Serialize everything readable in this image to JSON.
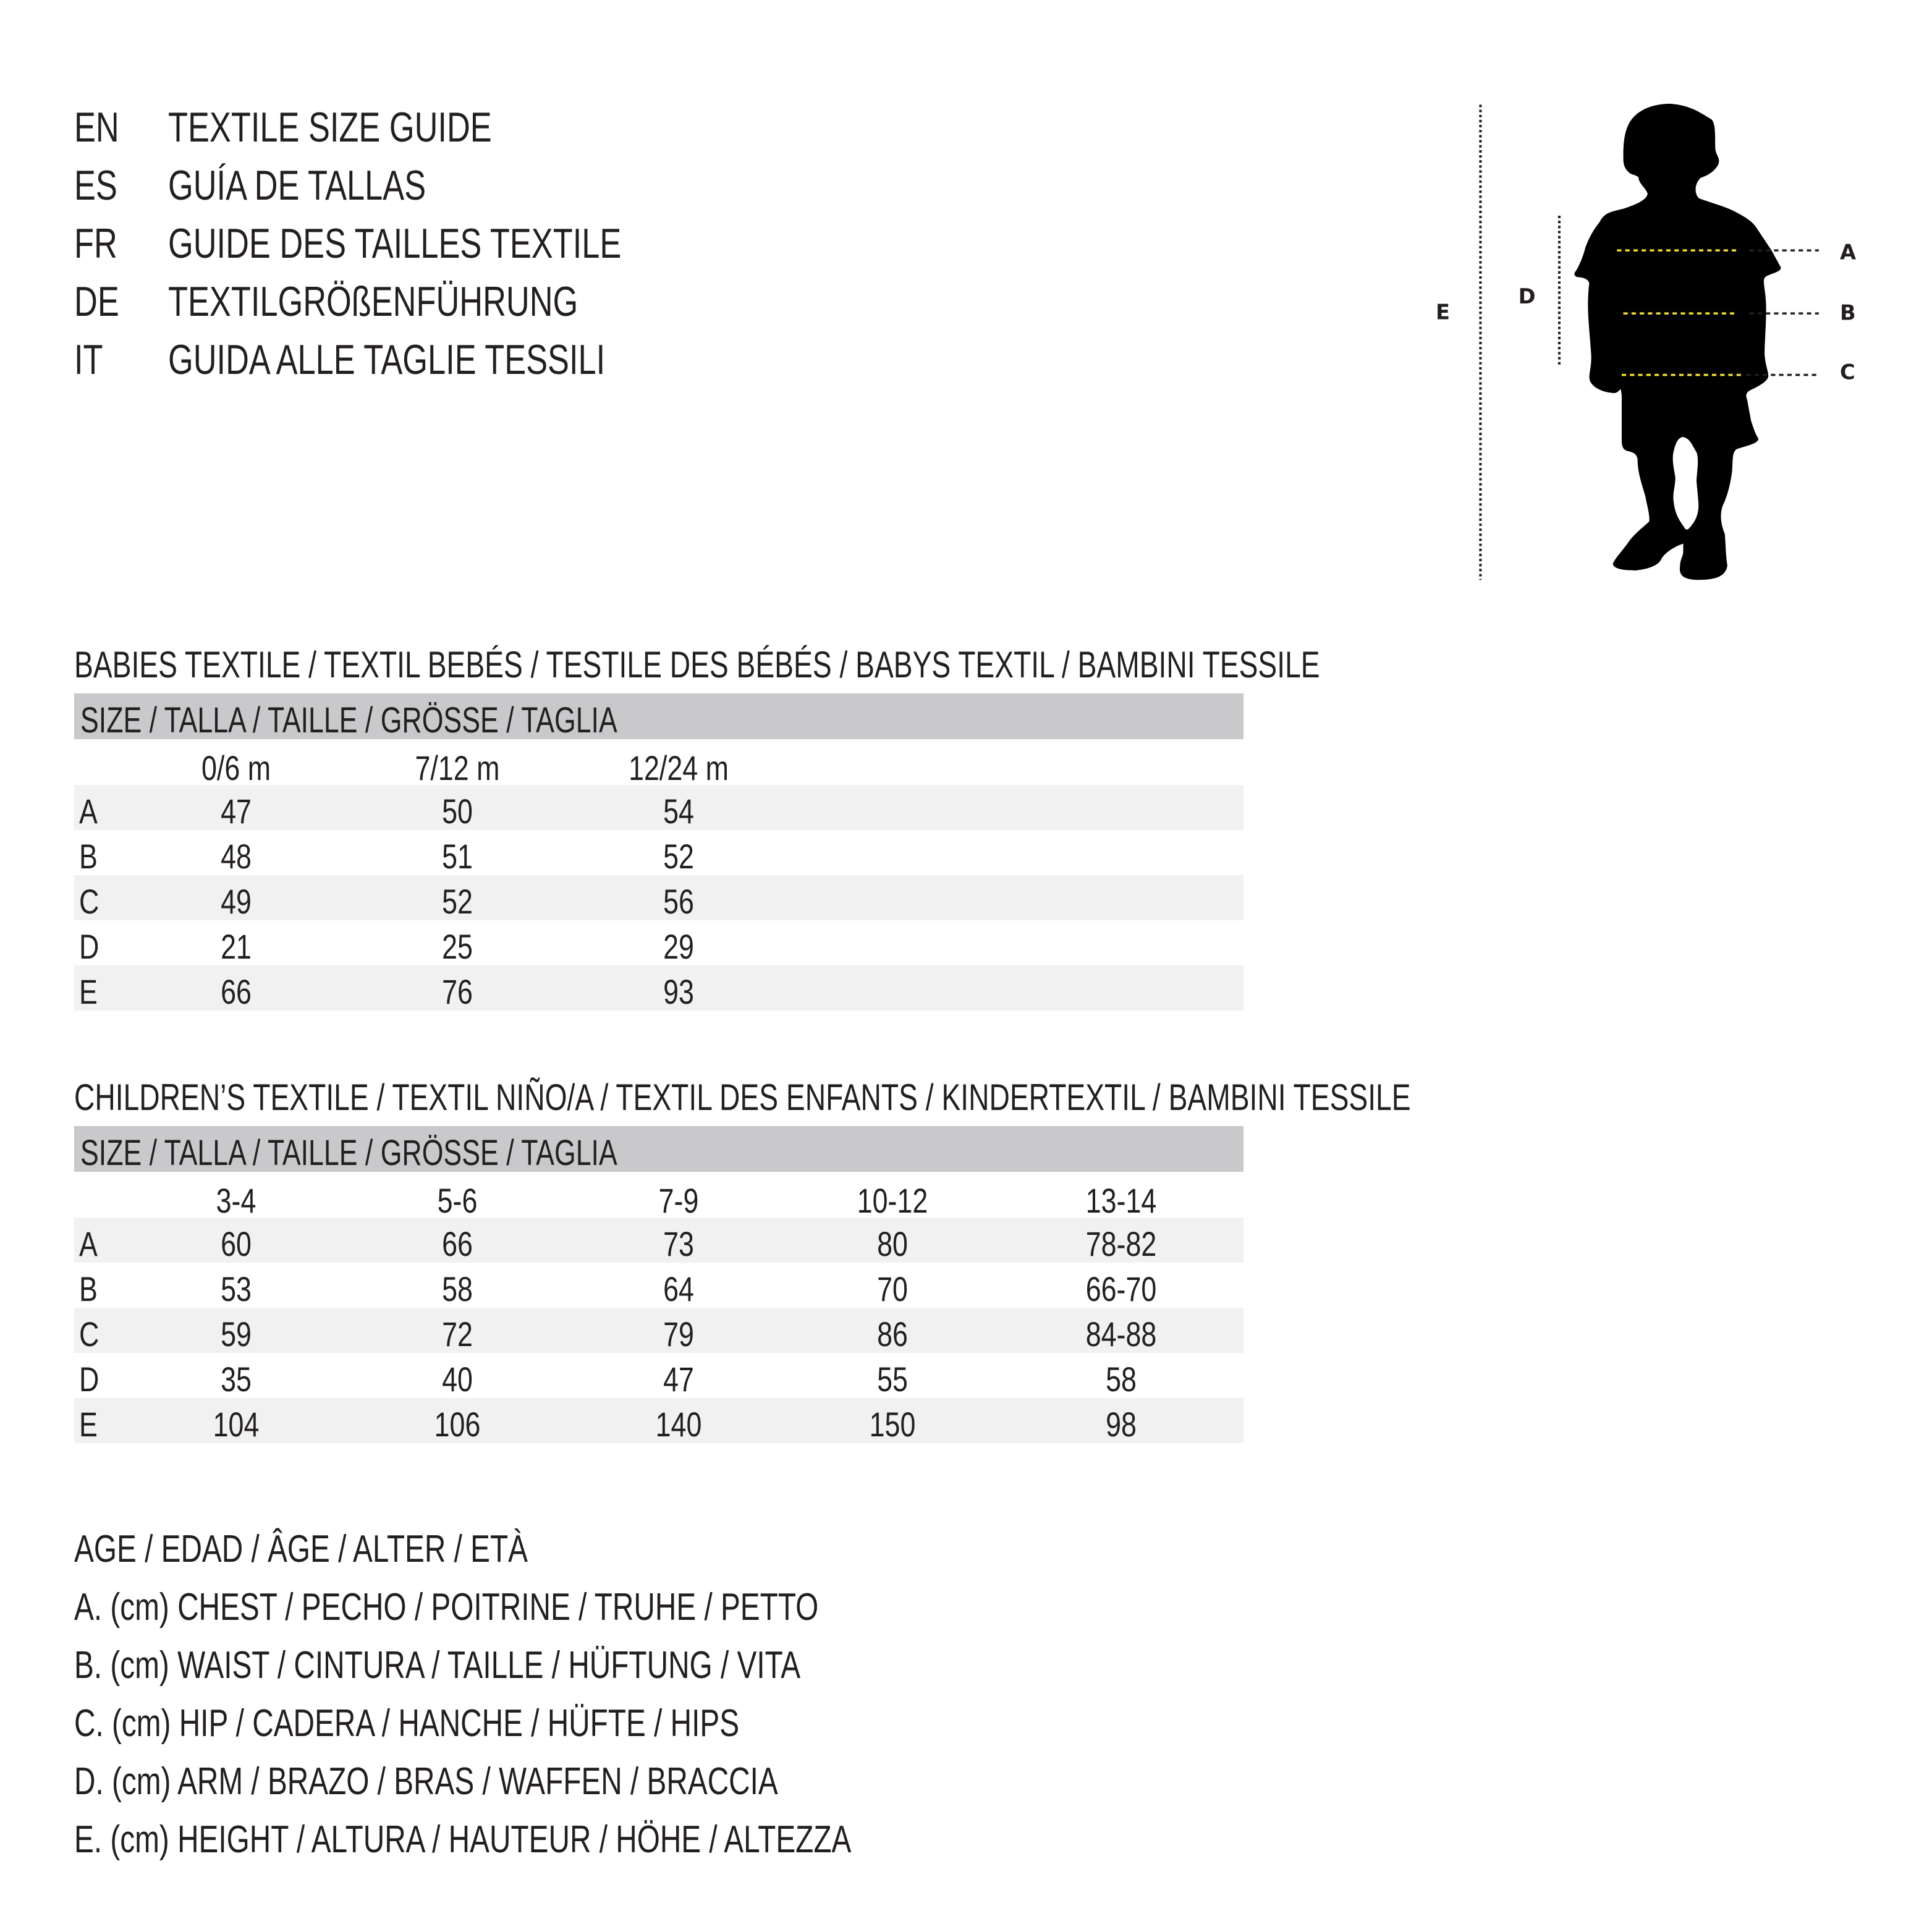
{
  "header": [
    {
      "code": "EN",
      "title": "TEXTILE SIZE GUIDE"
    },
    {
      "code": "ES",
      "title": "GUÍA DE TALLAS"
    },
    {
      "code": "FR",
      "title": "GUIDE DES TAILLES TEXTILE"
    },
    {
      "code": "DE",
      "title": "TEXTILGRÖßENFÜHRUNG"
    },
    {
      "code": "IT",
      "title": "GUIDA ALLE TAGLIE TESSILI"
    }
  ],
  "figure": {
    "labels": {
      "A": "A",
      "B": "B",
      "C": "C",
      "D": "D",
      "E": "E"
    },
    "highlight_color": "#f5e12a"
  },
  "babies": {
    "title": "BABIES TEXTILE / TEXTIL BEBÉS / TESTILE DES BÉBÉS / BABYS TEXTIL / BAMBINI TESSILE",
    "size_header": "SIZE / TALLA / TAILLE / GRÖSSE / TAGLIA",
    "columns": [
      "0/6 m",
      "7/12 m",
      "12/24 m"
    ],
    "rows": [
      {
        "label": "A",
        "values": [
          "47",
          "50",
          "54"
        ]
      },
      {
        "label": "B",
        "values": [
          "48",
          "51",
          "52"
        ]
      },
      {
        "label": "C",
        "values": [
          "49",
          "52",
          "56"
        ]
      },
      {
        "label": "D",
        "values": [
          "21",
          "25",
          "29"
        ]
      },
      {
        "label": "E",
        "values": [
          "66",
          "76",
          "93"
        ]
      }
    ]
  },
  "children": {
    "title": "CHILDREN’S TEXTILE / TEXTIL NIÑO/A / TEXTIL DES ENFANTS / KINDERTEXTIL / BAMBINI TESSILE",
    "size_header": "SIZE / TALLA / TAILLE / GRÖSSE / TAGLIA",
    "columns": [
      "3-4",
      "5-6",
      "7-9",
      "10-12",
      "13-14"
    ],
    "rows": [
      {
        "label": "A",
        "values": [
          "60",
          "66",
          "73",
          "80",
          "78-82"
        ]
      },
      {
        "label": "B",
        "values": [
          "53",
          "58",
          "64",
          "70",
          "66-70"
        ]
      },
      {
        "label": "C",
        "values": [
          "59",
          "72",
          "79",
          "86",
          "84-88"
        ]
      },
      {
        "label": "D",
        "values": [
          "35",
          "40",
          "47",
          "55",
          "58"
        ]
      },
      {
        "label": "E",
        "values": [
          "104",
          "106",
          "140",
          "150",
          "98"
        ]
      }
    ]
  },
  "legend": [
    "AGE / EDAD / ÂGE / ALTER / ETÀ",
    "A. (cm) CHEST / PECHO / POITRINE / TRUHE / PETTO",
    "B. (cm) WAIST / CINTURA / TAILLE / HÜFTUNG / VITA",
    "C. (cm) HIP / CADERA / HANCHE / HÜFTE / HIPS",
    "D. (cm) ARM / BRAZO / BRAS / WAFFEN / BRACCIA",
    "E. (cm) HEIGHT / ALTURA / HAUTEUR / HÖHE / ALTEZZA"
  ]
}
